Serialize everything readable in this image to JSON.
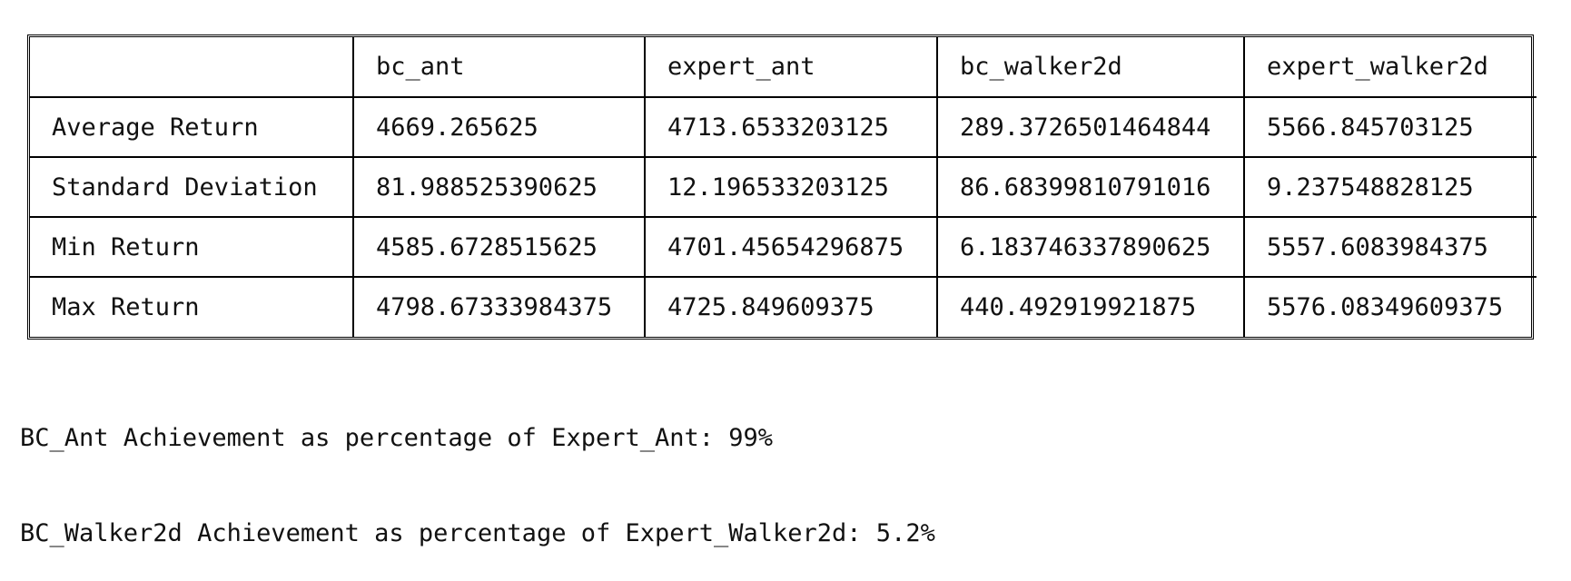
{
  "table": {
    "corner_header": "",
    "columns": [
      "bc_ant",
      "expert_ant",
      "bc_walker2d",
      "expert_walker2d"
    ],
    "rows": [
      {
        "label": "Average Return",
        "values": [
          "4669.265625",
          "4713.6533203125",
          "289.3726501464844",
          "5566.845703125"
        ]
      },
      {
        "label": "Standard Deviation",
        "values": [
          "81.988525390625",
          "12.196533203125",
          "86.68399810791016",
          "9.237548828125"
        ]
      },
      {
        "label": "Min Return",
        "values": [
          "4585.6728515625",
          "4701.45654296875",
          "6.183746337890625",
          "5557.6083984375"
        ]
      },
      {
        "label": "Max Return",
        "values": [
          "4798.67333984375",
          "4725.849609375",
          "440.492919921875",
          "5576.08349609375"
        ]
      }
    ]
  },
  "notes": [
    "BC_Ant Achievement as percentage of Expert_Ant: 99%",
    "BC_Walker2d Achievement as percentage of Expert_Walker2d: 5.2%"
  ]
}
